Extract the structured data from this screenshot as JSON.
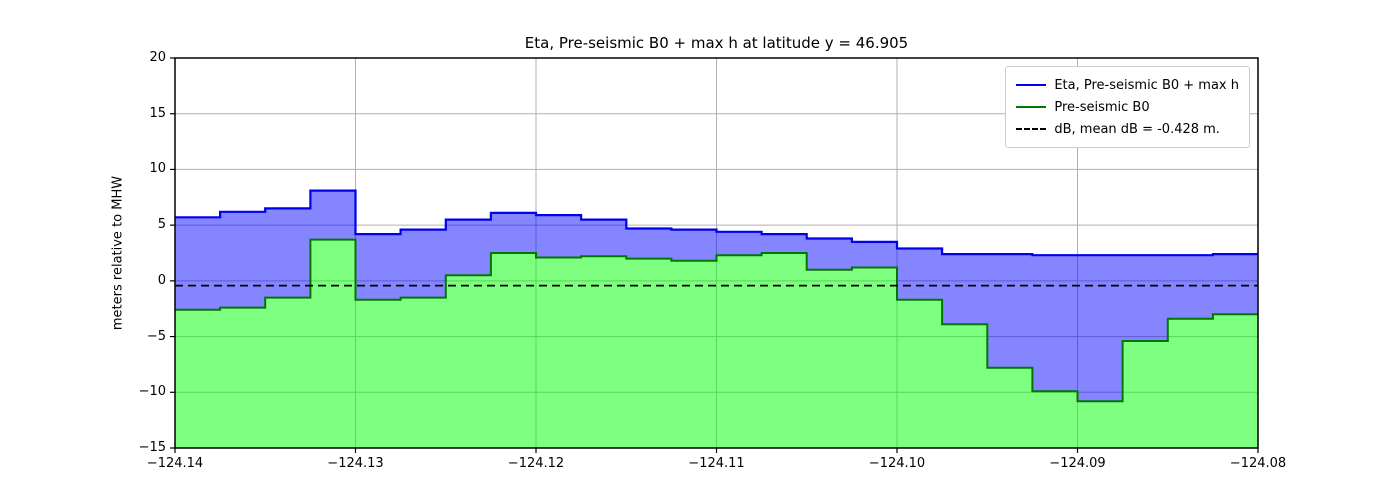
{
  "chart_data": {
    "type": "area",
    "title": "Eta, Pre-seismic B0 + max h at latitude y = 46.905",
    "ylabel": "meters relative to MHW",
    "xlim": [
      -124.14,
      -124.08
    ],
    "ylim": [
      -15,
      20
    ],
    "grid": true,
    "legend_position": "upper right",
    "xticks": [
      -124.14,
      -124.13,
      -124.12,
      -124.11,
      -124.1,
      -124.09,
      -124.08
    ],
    "xtick_labels": [
      "−124.14",
      "−124.13",
      "−124.12",
      "−124.11",
      "−124.10",
      "−124.09",
      "−124.08"
    ],
    "yticks": [
      -15,
      -10,
      -5,
      0,
      5,
      10,
      15,
      20
    ],
    "ytick_labels": [
      "−15",
      "−10",
      "−5",
      "0",
      "5",
      "10",
      "15",
      "20"
    ],
    "step_edges_x": [
      -124.14,
      -124.1375,
      -124.135,
      -124.1325,
      -124.13,
      -124.1275,
      -124.125,
      -124.1225,
      -124.12,
      -124.1175,
      -124.115,
      -124.1125,
      -124.11,
      -124.1075,
      -124.105,
      -124.1025,
      -124.1,
      -124.0975,
      -124.095,
      -124.0925,
      -124.09,
      -124.0875,
      -124.085,
      -124.0825,
      -124.08
    ],
    "series": [
      {
        "name": "Eta, Pre-seismic B0 + max h",
        "type": "step-area",
        "line_color": "#0000ee",
        "fill_color": "rgba(0,0,255,0.48)",
        "values": [
          5.7,
          6.2,
          6.5,
          8.1,
          4.2,
          4.6,
          5.5,
          6.1,
          5.9,
          5.5,
          4.7,
          4.6,
          4.4,
          4.2,
          3.8,
          3.5,
          2.9,
          2.4,
          2.4,
          2.3,
          2.3,
          2.3,
          2.3,
          2.4
        ]
      },
      {
        "name": "Pre-seismic B0",
        "type": "step-area",
        "line_color": "#007700",
        "fill_color": "rgba(0,255,0,0.5)",
        "values": [
          -2.6,
          -2.4,
          -1.5,
          3.7,
          -1.7,
          -1.5,
          0.5,
          2.5,
          2.1,
          2.2,
          2.0,
          1.8,
          2.3,
          2.5,
          1.0,
          1.2,
          -1.7,
          -3.9,
          -7.8,
          -9.9,
          -10.8,
          -5.4,
          -3.4,
          -3.0
        ]
      },
      {
        "name": "dB, mean dB = -0.428 m.",
        "type": "dashed-hline",
        "line_color": "#000000",
        "value": -0.428
      }
    ],
    "grid_color": "#b0b0b0"
  }
}
